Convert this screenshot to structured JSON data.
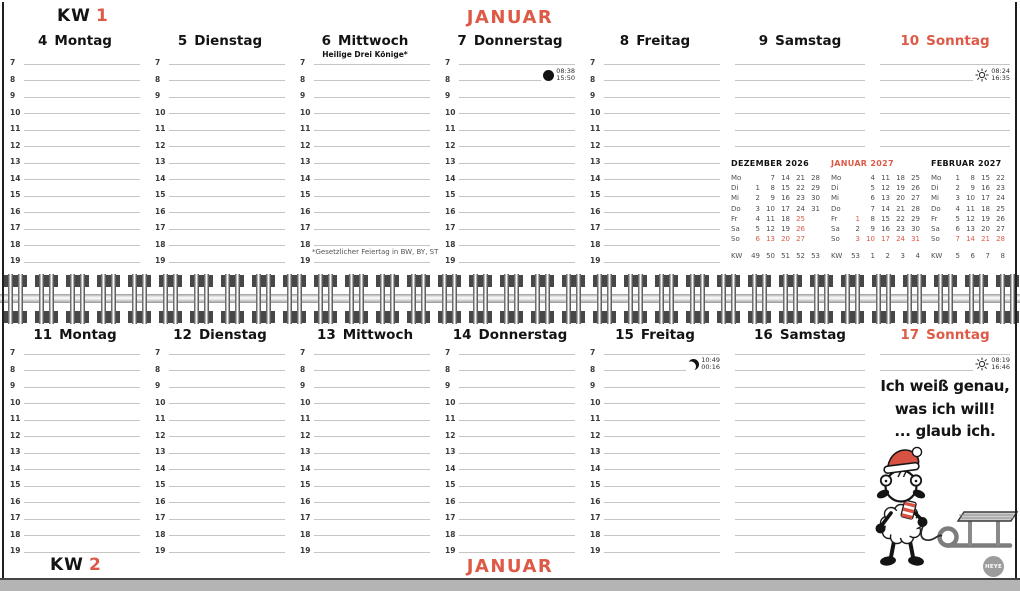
{
  "accent_color": "#dd5a47",
  "page": {
    "kw_top": {
      "label": "KW",
      "number": "1"
    },
    "kw_bottom": {
      "label": "KW",
      "number": "2"
    },
    "month_top": "JANUAR",
    "month_bottom": "JANUAR",
    "logo": "HEYE"
  },
  "hours": [
    "7",
    "8",
    "9",
    "10",
    "11",
    "12",
    "13",
    "14",
    "15",
    "16",
    "17",
    "18",
    "19"
  ],
  "week1": {
    "days": [
      {
        "num": "4",
        "name": "Montag"
      },
      {
        "num": "5",
        "name": "Dienstag"
      },
      {
        "num": "6",
        "name": "Mittwoch",
        "note": "Heilige Drei Könige*"
      },
      {
        "num": "7",
        "name": "Donnerstag",
        "moon": {
          "phase": "new-moon",
          "times": [
            "08:38",
            "15:50"
          ]
        }
      },
      {
        "num": "8",
        "name": "Freitag"
      },
      {
        "num": "9",
        "name": "Samstag"
      },
      {
        "num": "10",
        "name": "Sonntag",
        "sun": {
          "times": [
            "08:24",
            "16:35"
          ]
        }
      }
    ],
    "footnote": "*Gesetzlicher Feiertag in BW, BY, ST"
  },
  "week2": {
    "days": [
      {
        "num": "11",
        "name": "Montag"
      },
      {
        "num": "12",
        "name": "Dienstag"
      },
      {
        "num": "13",
        "name": "Mittwoch"
      },
      {
        "num": "14",
        "name": "Donnerstag"
      },
      {
        "num": "15",
        "name": "Freitag",
        "moon": {
          "phase": "first-quarter",
          "times": [
            "10:49",
            "00:16"
          ]
        }
      },
      {
        "num": "16",
        "name": "Samstag"
      },
      {
        "num": "17",
        "name": "Sonntag",
        "sun": {
          "times": [
            "08:19",
            "16:46"
          ]
        }
      }
    ],
    "quote": [
      "Ich weiß genau,",
      "was ich will!",
      "... glaub ich."
    ]
  },
  "mini_calendars": [
    {
      "title": "DEZEMBER 2026",
      "accent": false,
      "rows": [
        {
          "label": "Mo",
          "cells": [
            "",
            "7",
            "14",
            "21",
            "28"
          ]
        },
        {
          "label": "Di",
          "cells": [
            "1",
            "8",
            "15",
            "22",
            "29"
          ]
        },
        {
          "label": "Mi",
          "cells": [
            "2",
            "9",
            "16",
            "23",
            "30"
          ]
        },
        {
          "label": "Do",
          "cells": [
            "3",
            "10",
            "17",
            "24",
            "31"
          ]
        },
        {
          "label": "Fr",
          "cells": [
            "4",
            "11",
            "18",
            "25",
            ""
          ],
          "red": [
            3
          ]
        },
        {
          "label": "Sa",
          "cells": [
            "5",
            "12",
            "19",
            "26",
            ""
          ],
          "red": [
            3
          ]
        },
        {
          "label": "So",
          "cells": [
            "6",
            "13",
            "20",
            "27",
            ""
          ],
          "red": [
            0,
            1,
            2,
            3
          ]
        },
        {
          "label": "KW",
          "cells": [
            "49",
            "50",
            "51",
            "52",
            "53"
          ],
          "kw": true
        }
      ]
    },
    {
      "title": "JANUAR 2027",
      "accent": true,
      "rows": [
        {
          "label": "Mo",
          "cells": [
            "",
            "4",
            "11",
            "18",
            "25"
          ]
        },
        {
          "label": "Di",
          "cells": [
            "",
            "5",
            "12",
            "19",
            "26"
          ]
        },
        {
          "label": "Mi",
          "cells": [
            "",
            "6",
            "13",
            "20",
            "27"
          ]
        },
        {
          "label": "Do",
          "cells": [
            "",
            "7",
            "14",
            "21",
            "28"
          ]
        },
        {
          "label": "Fr",
          "cells": [
            "1",
            "8",
            "15",
            "22",
            "29"
          ],
          "red": [
            0
          ]
        },
        {
          "label": "Sa",
          "cells": [
            "2",
            "9",
            "16",
            "23",
            "30"
          ]
        },
        {
          "label": "So",
          "cells": [
            "3",
            "10",
            "17",
            "24",
            "31"
          ],
          "red": [
            0,
            1,
            2,
            3,
            4
          ]
        },
        {
          "label": "KW",
          "cells": [
            "53",
            "1",
            "2",
            "3",
            "4"
          ],
          "kw": true
        }
      ]
    },
    {
      "title": "FEBRUAR 2027",
      "accent": false,
      "rows": [
        {
          "label": "Mo",
          "cells": [
            "1",
            "8",
            "15",
            "22"
          ]
        },
        {
          "label": "Di",
          "cells": [
            "2",
            "9",
            "16",
            "23"
          ]
        },
        {
          "label": "Mi",
          "cells": [
            "3",
            "10",
            "17",
            "24"
          ]
        },
        {
          "label": "Do",
          "cells": [
            "4",
            "11",
            "18",
            "25"
          ]
        },
        {
          "label": "Fr",
          "cells": [
            "5",
            "12",
            "19",
            "26"
          ]
        },
        {
          "label": "Sa",
          "cells": [
            "6",
            "13",
            "20",
            "27"
          ]
        },
        {
          "label": "So",
          "cells": [
            "7",
            "14",
            "21",
            "28"
          ],
          "red": [
            0,
            1,
            2,
            3
          ]
        },
        {
          "label": "KW",
          "cells": [
            "5",
            "6",
            "7",
            "8"
          ],
          "kw": true
        }
      ]
    }
  ]
}
